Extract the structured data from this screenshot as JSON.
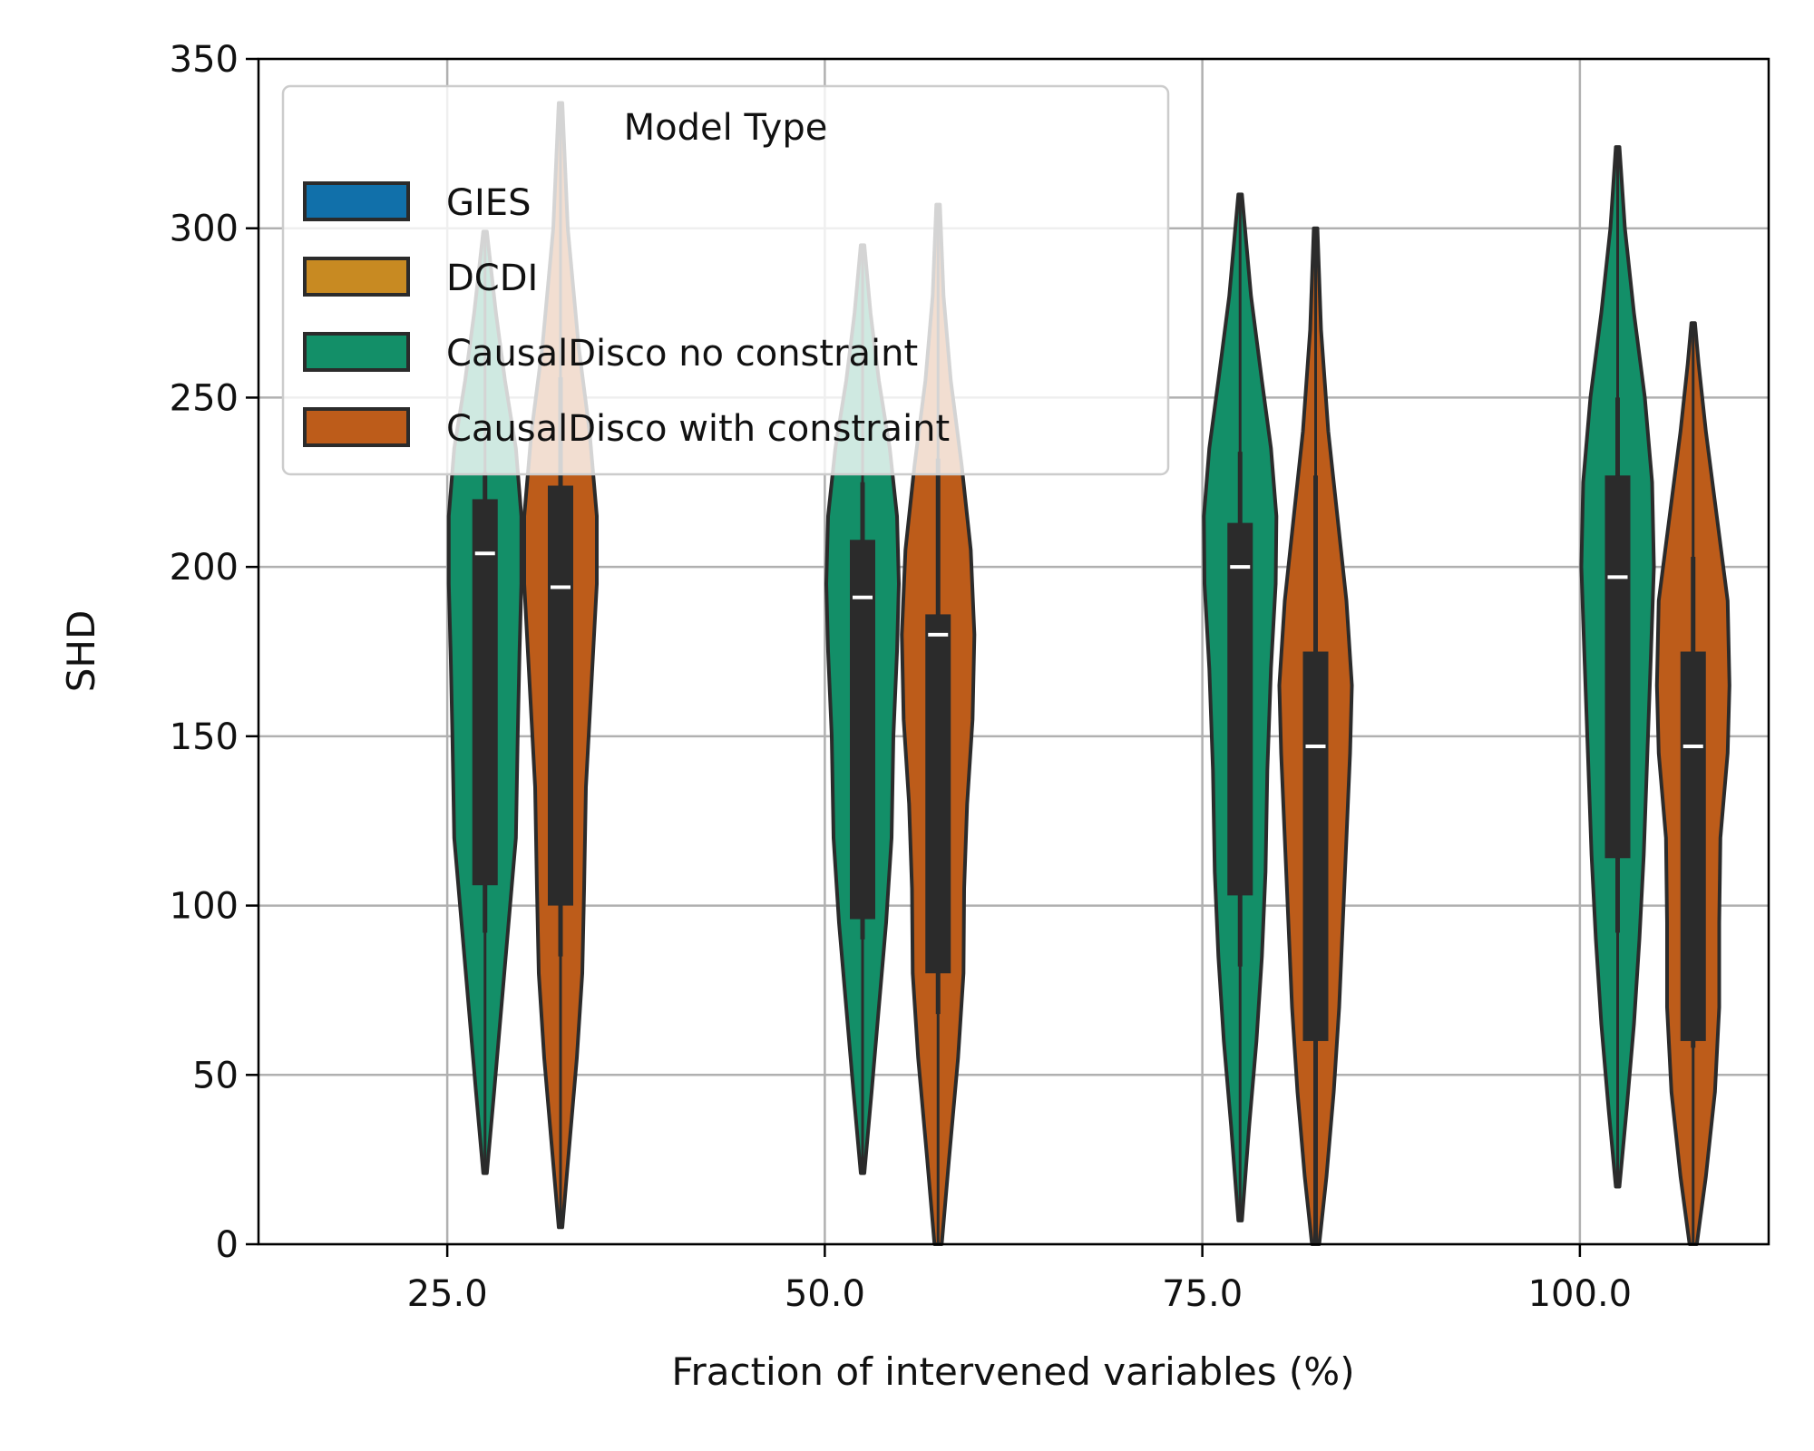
{
  "chart_data": {
    "type": "violin",
    "xlabel": "Fraction of intervened variables (%)",
    "ylabel": "SHD",
    "ylim": [
      0,
      350
    ],
    "yticks": [
      0,
      50,
      100,
      150,
      200,
      250,
      300,
      350
    ],
    "categories": [
      "25.0",
      "50.0",
      "75.0",
      "100.0"
    ],
    "category_values": [
      25,
      50,
      75,
      100
    ],
    "grid": true,
    "legend": {
      "title": "Model Type",
      "placement": "top-left",
      "entries": [
        {
          "label": "GIES",
          "color": "#1170aa"
        },
        {
          "label": "DCDI",
          "color": "#c88a22"
        },
        {
          "label": "CausalDisco no constraint",
          "color": "#138f68"
        },
        {
          "label": "CausalDisco with constraint",
          "color": "#bd5c1a"
        }
      ]
    },
    "series": [
      {
        "name": "CausalDisco no constraint",
        "color": "#138f68",
        "offset": 2.5,
        "violins": [
          {
            "category": "25.0",
            "ymin": 21,
            "ymax": 299,
            "q1": 106,
            "median": 204,
            "q3": 220,
            "whisker_low": 92,
            "whisker_high": 228,
            "density": [
              [
                21,
                0.05
              ],
              [
                45,
                0.25
              ],
              [
                70,
                0.45
              ],
              [
                95,
                0.65
              ],
              [
                120,
                0.85
              ],
              [
                150,
                0.9
              ],
              [
                175,
                0.95
              ],
              [
                195,
                1.0
              ],
              [
                215,
                1.0
              ],
              [
                235,
                0.85
              ],
              [
                255,
                0.55
              ],
              [
                275,
                0.3
              ],
              [
                299,
                0.05
              ]
            ]
          },
          {
            "category": "50.0",
            "ymin": 21,
            "ymax": 295,
            "q1": 96,
            "median": 191,
            "q3": 208,
            "whisker_low": 90,
            "whisker_high": 225,
            "density": [
              [
                21,
                0.05
              ],
              [
                45,
                0.25
              ],
              [
                70,
                0.45
              ],
              [
                95,
                0.65
              ],
              [
                120,
                0.8
              ],
              [
                150,
                0.85
              ],
              [
                175,
                0.95
              ],
              [
                195,
                1.0
              ],
              [
                215,
                0.95
              ],
              [
                235,
                0.75
              ],
              [
                255,
                0.45
              ],
              [
                275,
                0.22
              ],
              [
                295,
                0.05
              ]
            ]
          },
          {
            "category": "75.0",
            "ymin": 7,
            "ymax": 310,
            "q1": 103,
            "median": 200,
            "q3": 213,
            "whisker_low": 82,
            "whisker_high": 234,
            "density": [
              [
                7,
                0.05
              ],
              [
                35,
                0.25
              ],
              [
                60,
                0.45
              ],
              [
                85,
                0.6
              ],
              [
                110,
                0.7
              ],
              [
                140,
                0.75
              ],
              [
                170,
                0.85
              ],
              [
                195,
                0.98
              ],
              [
                215,
                1.0
              ],
              [
                235,
                0.85
              ],
              [
                255,
                0.6
              ],
              [
                280,
                0.3
              ],
              [
                310,
                0.05
              ]
            ]
          },
          {
            "category": "100.0",
            "ymin": 17,
            "ymax": 324,
            "q1": 114,
            "median": 197,
            "q3": 227,
            "whisker_low": 92,
            "whisker_high": 250,
            "density": [
              [
                17,
                0.05
              ],
              [
                40,
                0.25
              ],
              [
                65,
                0.45
              ],
              [
                90,
                0.6
              ],
              [
                115,
                0.72
              ],
              [
                145,
                0.82
              ],
              [
                175,
                0.92
              ],
              [
                200,
                1.0
              ],
              [
                225,
                0.95
              ],
              [
                250,
                0.75
              ],
              [
                275,
                0.45
              ],
              [
                300,
                0.2
              ],
              [
                324,
                0.05
              ]
            ]
          }
        ]
      },
      {
        "name": "CausalDisco with constraint",
        "color": "#bd5c1a",
        "offset": 7.5,
        "violins": [
          {
            "category": "25.0",
            "ymin": 5,
            "ymax": 337,
            "q1": 100,
            "median": 194,
            "q3": 224,
            "whisker_low": 85,
            "whisker_high": 256,
            "density": [
              [
                5,
                0.05
              ],
              [
                30,
                0.25
              ],
              [
                55,
                0.45
              ],
              [
                80,
                0.6
              ],
              [
                105,
                0.65
              ],
              [
                135,
                0.7
              ],
              [
                165,
                0.85
              ],
              [
                195,
                1.0
              ],
              [
                215,
                1.0
              ],
              [
                240,
                0.8
              ],
              [
                265,
                0.5
              ],
              [
                300,
                0.2
              ],
              [
                337,
                0.05
              ]
            ]
          },
          {
            "category": "50.0",
            "ymin": 0,
            "ymax": 307,
            "q1": 80,
            "median": 180,
            "q3": 186,
            "whisker_low": 68,
            "whisker_high": 232,
            "density": [
              [
                0,
                0.1
              ],
              [
                25,
                0.3
              ],
              [
                55,
                0.55
              ],
              [
                80,
                0.7
              ],
              [
                105,
                0.72
              ],
              [
                130,
                0.8
              ],
              [
                155,
                0.95
              ],
              [
                180,
                1.0
              ],
              [
                205,
                0.9
              ],
              [
                230,
                0.65
              ],
              [
                255,
                0.35
              ],
              [
                280,
                0.15
              ],
              [
                307,
                0.05
              ]
            ]
          },
          {
            "category": "75.0",
            "ymin": 0,
            "ymax": 300,
            "q1": 60,
            "median": 147,
            "q3": 175,
            "whisker_low": 0,
            "whisker_high": 227,
            "density": [
              [
                0,
                0.1
              ],
              [
                20,
                0.3
              ],
              [
                45,
                0.5
              ],
              [
                70,
                0.65
              ],
              [
                95,
                0.75
              ],
              [
                120,
                0.85
              ],
              [
                145,
                0.95
              ],
              [
                165,
                1.0
              ],
              [
                190,
                0.85
              ],
              [
                215,
                0.6
              ],
              [
                240,
                0.35
              ],
              [
                270,
                0.15
              ],
              [
                300,
                0.05
              ]
            ]
          },
          {
            "category": "100.0",
            "ymin": 0,
            "ymax": 272,
            "q1": 60,
            "median": 147,
            "q3": 175,
            "whisker_low": 58,
            "whisker_high": 203,
            "density": [
              [
                0,
                0.1
              ],
              [
                20,
                0.35
              ],
              [
                45,
                0.6
              ],
              [
                70,
                0.72
              ],
              [
                95,
                0.72
              ],
              [
                120,
                0.75
              ],
              [
                145,
                0.95
              ],
              [
                165,
                1.0
              ],
              [
                190,
                0.95
              ],
              [
                215,
                0.65
              ],
              [
                240,
                0.35
              ],
              [
                260,
                0.15
              ],
              [
                272,
                0.05
              ]
            ]
          }
        ]
      }
    ]
  }
}
